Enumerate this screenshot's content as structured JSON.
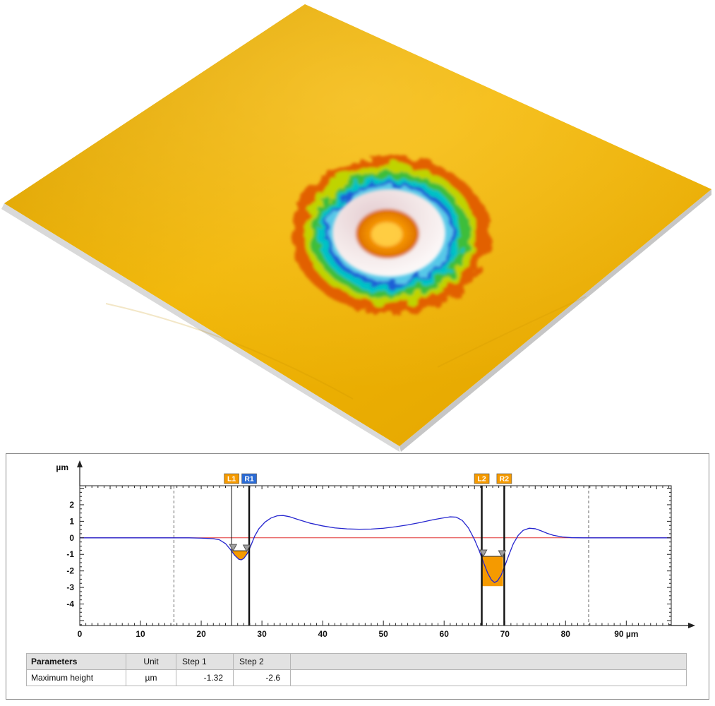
{
  "view3d": {
    "description": "3D topography view of laser-etched crater on gold surface",
    "surface_color": "#EFB405",
    "ring_colors": [
      "#E26100",
      "#BFD400",
      "#3DBE3A",
      "#00C2C6",
      "#1E5FD6",
      "#57C8E8"
    ],
    "rim_color": "#F6ECEC",
    "crater_center_color": "#F59500"
  },
  "chart_data": {
    "type": "line",
    "title": "",
    "ylabel": "µm",
    "x_unit": "µm",
    "xlim": [
      0,
      97.4
    ],
    "ylim": [
      -5.3,
      3.15
    ],
    "x_ticks": [
      0,
      10,
      20,
      30,
      40,
      50,
      60,
      70,
      80,
      90
    ],
    "x_tick_labels": [
      "0",
      "10",
      "20",
      "30",
      "40",
      "50",
      "60",
      "70",
      "80",
      "90 µm"
    ],
    "y_ticks": [
      2,
      1,
      0,
      -1,
      -2,
      -3,
      -4
    ],
    "zero_line_color": "#e03030",
    "profile_color": "#2525cf",
    "region_color": "#F59A00",
    "boundary_lines_x": [
      15.5,
      83.8
    ],
    "markers": [
      {
        "label": "L1",
        "x": 25.0,
        "color": "#F59A00",
        "line": "thin"
      },
      {
        "label": "R1",
        "x": 27.9,
        "color": "#2B6BD4",
        "line": "thick"
      },
      {
        "label": "L2",
        "x": 66.2,
        "color": "#F59A00",
        "line": "thick"
      },
      {
        "label": "R2",
        "x": 69.9,
        "color": "#F59A00",
        "line": "thick"
      }
    ],
    "regions": [
      {
        "x1": 25.1,
        "x2": 27.6,
        "top": -0.78,
        "bottom": "curve"
      },
      {
        "x1": 66.3,
        "x2": 69.7,
        "top": -1.12,
        "bottom": -2.92
      }
    ],
    "triangles": [
      [
        25.25,
        -0.78
      ],
      [
        27.5,
        -0.82
      ],
      [
        66.45,
        -1.12
      ],
      [
        69.55,
        -1.16
      ]
    ],
    "profile": [
      [
        0,
        0
      ],
      [
        5,
        0
      ],
      [
        10,
        0
      ],
      [
        15,
        0
      ],
      [
        18,
        0
      ],
      [
        20,
        -0.02
      ],
      [
        22,
        -0.05
      ],
      [
        23,
        -0.12
      ],
      [
        24,
        -0.35
      ],
      [
        24.8,
        -0.7
      ],
      [
        25.5,
        -1.05
      ],
      [
        26.2,
        -1.3
      ],
      [
        26.6,
        -1.33
      ],
      [
        27,
        -1.25
      ],
      [
        27.6,
        -0.95
      ],
      [
        28.2,
        -0.45
      ],
      [
        28.8,
        0.1
      ],
      [
        29.5,
        0.55
      ],
      [
        30.5,
        0.95
      ],
      [
        31.5,
        1.2
      ],
      [
        32.5,
        1.33
      ],
      [
        33.5,
        1.35
      ],
      [
        34.5,
        1.28
      ],
      [
        36,
        1.1
      ],
      [
        38,
        0.88
      ],
      [
        40,
        0.72
      ],
      [
        42,
        0.6
      ],
      [
        44,
        0.54
      ],
      [
        46,
        0.52
      ],
      [
        48,
        0.53
      ],
      [
        50,
        0.58
      ],
      [
        52,
        0.67
      ],
      [
        54,
        0.78
      ],
      [
        56,
        0.92
      ],
      [
        58,
        1.08
      ],
      [
        59.5,
        1.18
      ],
      [
        61,
        1.27
      ],
      [
        62,
        1.25
      ],
      [
        63,
        1.05
      ],
      [
        64,
        0.6
      ],
      [
        65,
        -0.1
      ],
      [
        65.8,
        -0.8
      ],
      [
        66.5,
        -1.5
      ],
      [
        67.2,
        -2.15
      ],
      [
        67.8,
        -2.55
      ],
      [
        68.3,
        -2.7
      ],
      [
        68.8,
        -2.6
      ],
      [
        69.4,
        -2.25
      ],
      [
        70,
        -1.7
      ],
      [
        70.7,
        -1.0
      ],
      [
        71.4,
        -0.35
      ],
      [
        72.2,
        0.15
      ],
      [
        73,
        0.45
      ],
      [
        74,
        0.58
      ],
      [
        75,
        0.55
      ],
      [
        76,
        0.42
      ],
      [
        77,
        0.27
      ],
      [
        78,
        0.15
      ],
      [
        79.5,
        0.05
      ],
      [
        81,
        0.01
      ],
      [
        83,
        0
      ],
      [
        85,
        0
      ],
      [
        90,
        0
      ],
      [
        95,
        0
      ],
      [
        97.3,
        0
      ]
    ]
  },
  "table": {
    "headers": [
      "Parameters",
      "Unit",
      "Step 1",
      "Step 2",
      ""
    ],
    "rows": [
      [
        "Maximum height",
        "µm",
        "-1.32",
        "-2.6",
        ""
      ]
    ]
  }
}
